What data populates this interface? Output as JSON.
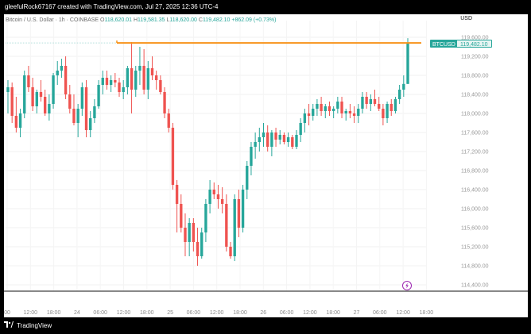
{
  "header": {
    "caption": "gleefulRock67167 created with TradingView.com, Jul 27, 2025 12:36 UTC-4"
  },
  "legend": {
    "symbol_title": "Bitcoin / U.S. Dollar · 1h · COINBASE",
    "open_label": "O",
    "open_value": "118,620.01",
    "high_label": "H",
    "high_value": "119,581.35",
    "low_label": "L",
    "low_value": "118,620.00",
    "close_label": "C",
    "close_value": "119,482.10",
    "change_value": "+862.09 (+0.73%)"
  },
  "currency_label": "USD",
  "price_tag": {
    "symbol": "BTCUSD",
    "price": "119,482.10"
  },
  "footer": {
    "brand": "TradingView"
  },
  "colors": {
    "up": "#26a69a",
    "down": "#ef5350",
    "level_line": "#f7931a",
    "tag_bg": "#26a69a"
  },
  "icons": {
    "replay": "lightning-replay-icon",
    "brand_logo": "tradingview-logo-icon"
  },
  "chart_data": {
    "type": "candlestick",
    "ylim": [
      114200,
      119800
    ],
    "yticks": [
      "119,600.00",
      "119,200.00",
      "118,800.00",
      "118,400.00",
      "118,000.00",
      "117,600.00",
      "117,200.00",
      "116,800.00",
      "116,400.00",
      "116,000.00",
      "115,600.00",
      "115,200.00",
      "114,800.00",
      "114,400.00"
    ],
    "xticks": [
      "00",
      "12:00",
      "18:00",
      "24",
      "06:00",
      "12:00",
      "18:00",
      "25",
      "06:00",
      "12:00",
      "18:00",
      "26",
      "06:00",
      "12:00",
      "18:00",
      "27",
      "06:00",
      "12:00",
      "18:00",
      "2"
    ],
    "level_line": 119482.1,
    "grid": true,
    "candles": [
      [
        118450,
        118700,
        118000,
        118550
      ],
      [
        118550,
        118650,
        117800,
        117950
      ],
      [
        117950,
        118350,
        117600,
        117700
      ],
      [
        117700,
        118100,
        117500,
        118000
      ],
      [
        118000,
        118900,
        117900,
        118800
      ],
      [
        118800,
        119000,
        118450,
        118550
      ],
      [
        118550,
        118750,
        118050,
        118150
      ],
      [
        118150,
        118500,
        118000,
        118450
      ],
      [
        118450,
        118700,
        118250,
        118350
      ],
      [
        118350,
        118500,
        117950,
        118000
      ],
      [
        118000,
        118400,
        117850,
        118200
      ],
      [
        118200,
        118850,
        118100,
        118800
      ],
      [
        118800,
        119100,
        118600,
        118900
      ],
      [
        118900,
        119150,
        118750,
        119000
      ],
      [
        119000,
        119200,
        118300,
        118400
      ],
      [
        118400,
        118600,
        118000,
        118100
      ],
      [
        118100,
        118400,
        117750,
        117800
      ],
      [
        117800,
        118200,
        117500,
        118100
      ],
      [
        118100,
        118650,
        117950,
        118550
      ],
      [
        118550,
        118700,
        117500,
        117650
      ],
      [
        117650,
        118050,
        117500,
        117900
      ],
      [
        117900,
        118300,
        117800,
        118150
      ],
      [
        118150,
        118700,
        118100,
        118600
      ],
      [
        118600,
        118900,
        118400,
        118750
      ],
      [
        118750,
        118900,
        118500,
        118600
      ],
      [
        118600,
        118800,
        118450,
        118700
      ],
      [
        118700,
        118850,
        118550,
        118650
      ],
      [
        118650,
        118750,
        118350,
        118450
      ],
      [
        118450,
        118700,
        118300,
        118550
      ],
      [
        118550,
        119000,
        118400,
        118950
      ],
      [
        118950,
        119500,
        118000,
        118500
      ],
      [
        118500,
        119000,
        118350,
        118900
      ],
      [
        118900,
        119400,
        118600,
        119000
      ],
      [
        119000,
        119350,
        118400,
        118500
      ],
      [
        118500,
        119100,
        118300,
        118950
      ],
      [
        118950,
        119200,
        118700,
        118800
      ],
      [
        118800,
        118900,
        118500,
        118700
      ],
      [
        118700,
        118800,
        118400,
        118450
      ],
      [
        118450,
        118550,
        117900,
        118000
      ],
      [
        118000,
        118100,
        117600,
        117700
      ],
      [
        117700,
        117800,
        116400,
        116500
      ],
      [
        116500,
        116600,
        115500,
        116100
      ],
      [
        116100,
        116300,
        115500,
        115600
      ],
      [
        115600,
        115900,
        115000,
        115300
      ],
      [
        115300,
        115800,
        115000,
        115700
      ],
      [
        115700,
        115800,
        115100,
        115300
      ],
      [
        115300,
        115600,
        114800,
        115000
      ],
      [
        115000,
        115600,
        114950,
        115500
      ],
      [
        115500,
        116200,
        115300,
        116100
      ],
      [
        116100,
        116600,
        115900,
        116400
      ],
      [
        116400,
        116550,
        116200,
        116300
      ],
      [
        116300,
        116500,
        116000,
        116200
      ],
      [
        116200,
        116450,
        115900,
        116100
      ],
      [
        116100,
        116300,
        115100,
        115200
      ],
      [
        115200,
        115300,
        114950,
        115000
      ],
      [
        115000,
        116300,
        114900,
        116200
      ],
      [
        116200,
        116400,
        115400,
        115600
      ],
      [
        115600,
        116500,
        115500,
        116400
      ],
      [
        116400,
        117000,
        116200,
        116900
      ],
      [
        116900,
        117400,
        116700,
        117300
      ],
      [
        117300,
        117600,
        117050,
        117400
      ],
      [
        117400,
        117700,
        117200,
        117500
      ],
      [
        117500,
        117800,
        117300,
        117600
      ],
      [
        117600,
        117750,
        117200,
        117300
      ],
      [
        117300,
        117650,
        117100,
        117600
      ],
      [
        117600,
        117700,
        117300,
        117450
      ],
      [
        117450,
        117650,
        117350,
        117550
      ],
      [
        117550,
        117600,
        117350,
        117400
      ],
      [
        117400,
        117600,
        117300,
        117500
      ],
      [
        117500,
        117550,
        117250,
        117300
      ],
      [
        117300,
        117650,
        117250,
        117550
      ],
      [
        117550,
        117900,
        117400,
        117800
      ],
      [
        117800,
        118100,
        117600,
        118000
      ],
      [
        118000,
        118200,
        117750,
        117950
      ],
      [
        117950,
        118200,
        117850,
        118100
      ],
      [
        118100,
        118300,
        117950,
        118200
      ],
      [
        118200,
        118350,
        117950,
        118050
      ],
      [
        118050,
        118200,
        117900,
        118150
      ],
      [
        118150,
        118250,
        117950,
        118050
      ],
      [
        118050,
        118150,
        117900,
        118100
      ],
      [
        118100,
        118350,
        118000,
        118250
      ],
      [
        118250,
        118350,
        117900,
        118000
      ],
      [
        118000,
        118100,
        117850,
        118050
      ],
      [
        118050,
        118200,
        117900,
        118000
      ],
      [
        118000,
        118150,
        117800,
        117950
      ],
      [
        117950,
        118200,
        117800,
        118100
      ],
      [
        118100,
        118450,
        118000,
        118350
      ],
      [
        118350,
        118450,
        118100,
        118200
      ],
      [
        118200,
        118400,
        118050,
        118300
      ],
      [
        118300,
        118500,
        118150,
        118200
      ],
      [
        118200,
        118350,
        118050,
        118100
      ],
      [
        118100,
        118200,
        117750,
        117900
      ],
      [
        117900,
        118250,
        117800,
        118200
      ],
      [
        118200,
        118300,
        117950,
        118050
      ],
      [
        118050,
        118350,
        118000,
        118300
      ],
      [
        118300,
        118600,
        118200,
        118500
      ],
      [
        118500,
        118800,
        118350,
        118620
      ],
      [
        118620,
        119581,
        118620,
        119482
      ]
    ]
  }
}
